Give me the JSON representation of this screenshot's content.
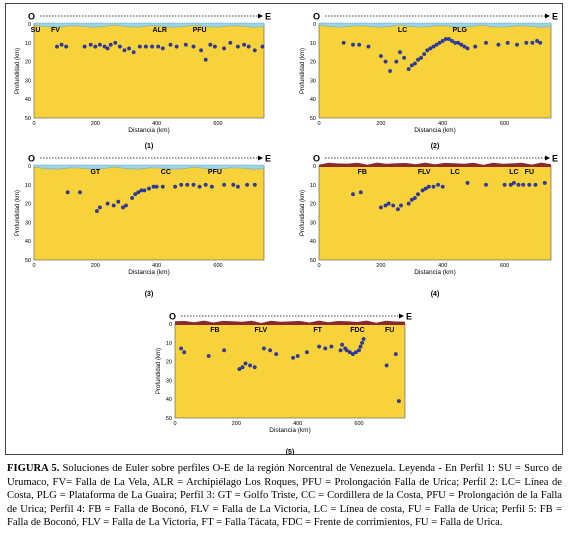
{
  "figure": {
    "panels": [
      {
        "label": "(1)",
        "west": "O",
        "east": "E",
        "ylabel": "Profundidad (km)",
        "xlabel": "Distancia (km)",
        "yticks": [
          "0",
          "10",
          "20",
          "30",
          "40",
          "50"
        ],
        "xticks": [
          "0",
          "200",
          "400",
          "600"
        ],
        "annotations": [
          {
            "text": "SU",
            "x": 5
          },
          {
            "text": "FV",
            "x": 70
          },
          {
            "text": "ALR",
            "x": 410
          },
          {
            "text": "PFU",
            "x": 540
          }
        ],
        "surface": "sea",
        "points": [
          [
            75,
            12
          ],
          [
            90,
            11
          ],
          [
            105,
            12
          ],
          [
            165,
            12
          ],
          [
            185,
            11
          ],
          [
            200,
            12
          ],
          [
            215,
            11
          ],
          [
            230,
            12
          ],
          [
            240,
            13
          ],
          [
            250,
            11
          ],
          [
            265,
            10
          ],
          [
            280,
            12
          ],
          [
            295,
            14
          ],
          [
            310,
            13
          ],
          [
            325,
            15
          ],
          [
            345,
            12
          ],
          [
            365,
            12
          ],
          [
            385,
            12
          ],
          [
            405,
            12
          ],
          [
            420,
            13
          ],
          [
            445,
            11
          ],
          [
            465,
            12
          ],
          [
            495,
            11
          ],
          [
            520,
            12
          ],
          [
            545,
            14
          ],
          [
            560,
            19
          ],
          [
            575,
            11
          ],
          [
            590,
            12
          ],
          [
            620,
            13
          ],
          [
            640,
            10
          ],
          [
            665,
            12
          ],
          [
            685,
            11
          ],
          [
            700,
            12
          ],
          [
            720,
            14
          ],
          [
            745,
            12
          ]
        ]
      },
      {
        "label": "(2)",
        "west": "O",
        "east": "E",
        "ylabel": "Profundidad (km)",
        "xlabel": "Distancia (km)",
        "yticks": [
          "0",
          "10",
          "20",
          "30",
          "40",
          "50"
        ],
        "xticks": [
          "0",
          "200",
          "400",
          "600"
        ],
        "annotations": [
          {
            "text": "LC",
            "x": 270
          },
          {
            "text": "PLG",
            "x": 455
          }
        ],
        "surface": "sea",
        "points": [
          [
            80,
            10
          ],
          [
            110,
            11
          ],
          [
            130,
            11
          ],
          [
            160,
            12
          ],
          [
            200,
            17
          ],
          [
            215,
            20
          ],
          [
            230,
            25
          ],
          [
            250,
            20
          ],
          [
            262,
            15
          ],
          [
            275,
            18
          ],
          [
            290,
            24
          ],
          [
            300,
            22
          ],
          [
            310,
            21
          ],
          [
            320,
            19
          ],
          [
            330,
            18
          ],
          [
            340,
            16
          ],
          [
            350,
            14
          ],
          [
            360,
            13
          ],
          [
            370,
            12
          ],
          [
            380,
            11
          ],
          [
            390,
            10
          ],
          [
            400,
            9
          ],
          [
            410,
            8
          ],
          [
            420,
            8
          ],
          [
            430,
            9
          ],
          [
            440,
            10
          ],
          [
            450,
            10
          ],
          [
            460,
            11
          ],
          [
            470,
            12
          ],
          [
            480,
            13
          ],
          [
            505,
            12
          ],
          [
            540,
            10
          ],
          [
            580,
            11
          ],
          [
            610,
            10
          ],
          [
            640,
            11
          ],
          [
            670,
            10
          ],
          [
            690,
            10
          ],
          [
            705,
            9
          ],
          [
            715,
            10
          ]
        ]
      },
      {
        "label": "(3)",
        "west": "O",
        "east": "E",
        "ylabel": "Profundidad (km)",
        "xlabel": "Distancia (km)",
        "yticks": [
          "0",
          "10",
          "20",
          "30",
          "40",
          "50"
        ],
        "xticks": [
          "0",
          "200",
          "400",
          "600"
        ],
        "annotations": [
          {
            "text": "GT",
            "x": 200
          },
          {
            "text": "CC",
            "x": 430
          },
          {
            "text": "PFU",
            "x": 590
          }
        ],
        "surface": "sea",
        "points": [
          [
            110,
            14
          ],
          [
            150,
            14
          ],
          [
            205,
            24
          ],
          [
            215,
            22
          ],
          [
            240,
            20
          ],
          [
            260,
            21
          ],
          [
            275,
            19
          ],
          [
            290,
            22
          ],
          [
            300,
            21
          ],
          [
            320,
            17
          ],
          [
            330,
            15
          ],
          [
            340,
            14
          ],
          [
            350,
            13
          ],
          [
            360,
            13
          ],
          [
            375,
            12
          ],
          [
            390,
            11
          ],
          [
            400,
            11
          ],
          [
            420,
            11
          ],
          [
            460,
            11
          ],
          [
            480,
            10
          ],
          [
            500,
            10
          ],
          [
            520,
            10
          ],
          [
            540,
            11
          ],
          [
            560,
            10
          ],
          [
            580,
            11
          ],
          [
            620,
            10
          ],
          [
            650,
            10
          ],
          [
            665,
            11
          ],
          [
            695,
            10
          ],
          [
            720,
            10
          ]
        ]
      },
      {
        "label": "(4)",
        "west": "O",
        "east": "E",
        "ylabel": "Profundidad (km)",
        "xlabel": "Distancia (km)",
        "yticks": [
          "0",
          "10",
          "20",
          "30",
          "40",
          "50"
        ],
        "xticks": [
          "0",
          "200",
          "400",
          "600"
        ],
        "annotations": [
          {
            "text": "FB",
            "x": 140
          },
          {
            "text": "FLV",
            "x": 340
          },
          {
            "text": "LC",
            "x": 440
          },
          {
            "text": "LC",
            "x": 630
          },
          {
            "text": "FU",
            "x": 680
          }
        ],
        "surface": "land",
        "points": [
          [
            110,
            15
          ],
          [
            135,
            14
          ],
          [
            200,
            22
          ],
          [
            215,
            21
          ],
          [
            225,
            20
          ],
          [
            240,
            21
          ],
          [
            255,
            23
          ],
          [
            265,
            21
          ],
          [
            290,
            20
          ],
          [
            300,
            18
          ],
          [
            310,
            17
          ],
          [
            320,
            15
          ],
          [
            335,
            13
          ],
          [
            345,
            12
          ],
          [
            355,
            11
          ],
          [
            370,
            11
          ],
          [
            385,
            10
          ],
          [
            400,
            11
          ],
          [
            480,
            9
          ],
          [
            540,
            10
          ],
          [
            600,
            10
          ],
          [
            620,
            10
          ],
          [
            630,
            9
          ],
          [
            645,
            10
          ],
          [
            660,
            10
          ],
          [
            680,
            10
          ],
          [
            700,
            10
          ],
          [
            730,
            9
          ]
        ]
      },
      {
        "label": "(5)",
        "west": "O",
        "east": "E",
        "ylabel": "Profundidad (km)",
        "xlabel": "Distancia (km)",
        "yticks": [
          "0",
          "10",
          "20",
          "30",
          "40",
          "50"
        ],
        "xticks": [
          "0",
          "200",
          "400",
          "600"
        ],
        "annotations": [
          {
            "text": "FB",
            "x": 130
          },
          {
            "text": "FLV",
            "x": 280
          },
          {
            "text": "FT",
            "x": 465
          },
          {
            "text": "FDC",
            "x": 595
          },
          {
            "text": "FU",
            "x": 700
          }
        ],
        "surface": "land",
        "points": [
          [
            20,
            13
          ],
          [
            30,
            15
          ],
          [
            110,
            17
          ],
          [
            160,
            14
          ],
          [
            210,
            24
          ],
          [
            220,
            23
          ],
          [
            230,
            21
          ],
          [
            245,
            22
          ],
          [
            260,
            23
          ],
          [
            290,
            13
          ],
          [
            310,
            14
          ],
          [
            330,
            16
          ],
          [
            385,
            18
          ],
          [
            400,
            17
          ],
          [
            430,
            15
          ],
          [
            470,
            12
          ],
          [
            490,
            13
          ],
          [
            510,
            12
          ],
          [
            540,
            14
          ],
          [
            545,
            11
          ],
          [
            555,
            13
          ],
          [
            560,
            14
          ],
          [
            570,
            15
          ],
          [
            580,
            16
          ],
          [
            590,
            15
          ],
          [
            600,
            14
          ],
          [
            605,
            12
          ],
          [
            610,
            10
          ],
          [
            615,
            8
          ],
          [
            690,
            22
          ],
          [
            720,
            16
          ],
          [
            730,
            41
          ]
        ]
      }
    ]
  },
  "caption": {
    "prefix": "FIGURA 5.",
    "text": " Soluciones de Euler sobre perfiles O-E de la región Norcentral de Venezuela. Leyenda - En Perfil 1: SU = Surco de Urumaco, FV= Falla de La Vela, ALR = Archipiélago Los Roques, PFU = Prolongación Falla de Urica; Perfil 2: LC= Línea de Costa, PLG = Plataforma de La Guaira; Perfil 3: GT = Golfo Triste, CC = Cordillera de la Costa, PFU = Prolongación de la Falla de Urica; Perfil 4: FB = Falla de Boconó, FLV = Falla de La Victoria, LC = Línea de costa, FU = Falla de Urica; Perfil 5: FB = Falla de Boconó, FLV = Falla de La Victoria, FT = Falla Tácata, FDC = Frente de corrimientos, FU = Falla de Urica."
  },
  "colors": {
    "plot_fill": "#f7d23a",
    "sea": "#9fd3e6",
    "land": "#8a2a2a",
    "dot": "#2e3aa8",
    "arrow": "#000000"
  }
}
